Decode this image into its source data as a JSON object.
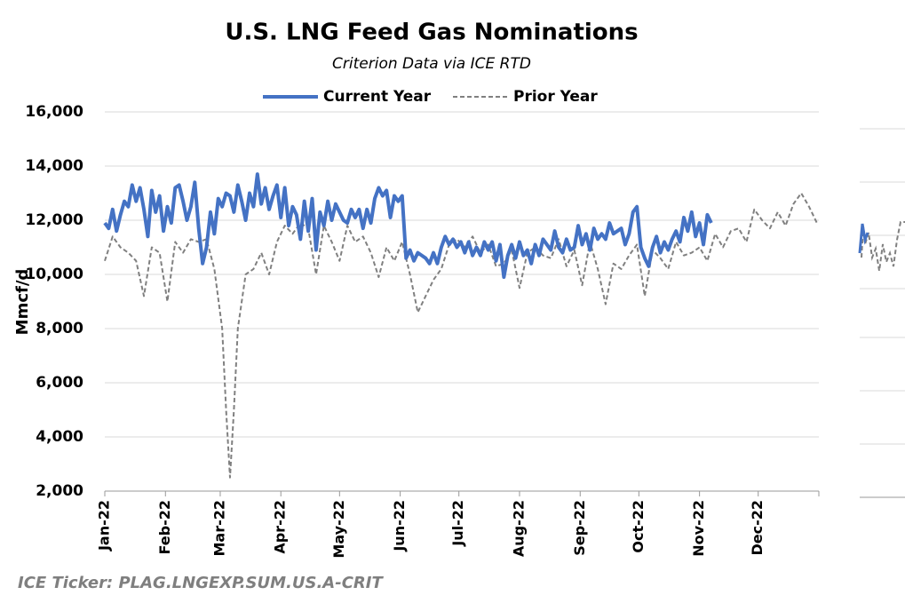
{
  "chart_data": {
    "type": "line",
    "title": "U.S. LNG Feed Gas Nominations",
    "subtitle": "Criterion Data via ICE RTD",
    "ylabel": "Mmcf/d",
    "footer": "ICE Ticker: PLAG.LNGEXP.SUM.US.A-CRIT",
    "legend": "top",
    "grid": true,
    "xlim": [
      0,
      365
    ],
    "xticks": [
      {
        "value": 0,
        "label": "Jan-22"
      },
      {
        "value": 31,
        "label": "Feb-22"
      },
      {
        "value": 59,
        "label": "Mar-22"
      },
      {
        "value": 90,
        "label": "Apr-22"
      },
      {
        "value": 120,
        "label": "May-22"
      },
      {
        "value": 151,
        "label": "Jun-22"
      },
      {
        "value": 181,
        "label": "Jul-22"
      },
      {
        "value": 212,
        "label": "Aug-22"
      },
      {
        "value": 243,
        "label": "Sep-22"
      },
      {
        "value": 273,
        "label": "Oct-22"
      },
      {
        "value": 304,
        "label": "Nov-22"
      },
      {
        "value": 334,
        "label": "Dec-22"
      }
    ],
    "ylim": [
      2000,
      16000
    ],
    "yticks": [
      {
        "value": 2000,
        "label": "2,000"
      },
      {
        "value": 4000,
        "label": "4,000"
      },
      {
        "value": 6000,
        "label": "6,000"
      },
      {
        "value": 8000,
        "label": "8,000"
      },
      {
        "value": 10000,
        "label": "10,000"
      },
      {
        "value": 12000,
        "label": "12,000"
      },
      {
        "value": 14000,
        "label": "14,000"
      },
      {
        "value": 16000,
        "label": "16,000"
      }
    ],
    "series": [
      {
        "name": "Current Year",
        "color": "#4472c4",
        "dash": false,
        "width": 4,
        "x": [
          0,
          2,
          4,
          6,
          8,
          10,
          12,
          14,
          16,
          18,
          20,
          22,
          24,
          26,
          28,
          30,
          32,
          34,
          36,
          38,
          40,
          42,
          44,
          46,
          48,
          50,
          52,
          54,
          56,
          58,
          60,
          62,
          64,
          66,
          68,
          70,
          72,
          74,
          76,
          78,
          80,
          82,
          84,
          86,
          88,
          90,
          92,
          94,
          96,
          98,
          100,
          102,
          104,
          106,
          108,
          110,
          112,
          114,
          116,
          118,
          120,
          122,
          124,
          126,
          128,
          130,
          132,
          134,
          136,
          138,
          140,
          142,
          144,
          146,
          148,
          150,
          152,
          154,
          156,
          158,
          160,
          162,
          164,
          166,
          168,
          170,
          172,
          174,
          176,
          178,
          180,
          182,
          184,
          186,
          188,
          190,
          192,
          194,
          196,
          198,
          200,
          202,
          204,
          206,
          208,
          210,
          212,
          214,
          216,
          218,
          220,
          222,
          224,
          226,
          228,
          230,
          232,
          234,
          236,
          238,
          240,
          242,
          244,
          246,
          248,
          250,
          252,
          254,
          256,
          258,
          260,
          262,
          264,
          266,
          268,
          270,
          272,
          274,
          276,
          278,
          280,
          282,
          284,
          286,
          288,
          290,
          292,
          294,
          296,
          298,
          300,
          302,
          304,
          306,
          308,
          310
        ],
        "values": [
          11900,
          11700,
          12400,
          11600,
          12200,
          12700,
          12500,
          13300,
          12700,
          13200,
          12400,
          11400,
          13100,
          12300,
          12900,
          11600,
          12500,
          11900,
          13200,
          13300,
          12700,
          12000,
          12500,
          13400,
          11700,
          10400,
          11000,
          12300,
          11500,
          12800,
          12500,
          13000,
          12900,
          12300,
          13300,
          12700,
          12000,
          13000,
          12500,
          13700,
          12600,
          13200,
          12400,
          12900,
          13300,
          12100,
          13200,
          11800,
          12500,
          12200,
          11300,
          12700,
          11600,
          12800,
          10900,
          12300,
          11800,
          12700,
          12000,
          12600,
          12300,
          12000,
          11900,
          12400,
          12100,
          12400,
          11700,
          12400,
          11900,
          12800,
          13200,
          12900,
          13100,
          12100,
          12900,
          12700,
          12900,
          10600,
          10900,
          10500,
          10800,
          10700,
          10600,
          10400,
          10800,
          10400,
          11000,
          11400,
          11100,
          11300,
          11000,
          11200,
          10800,
          11200,
          10700,
          11000,
          10700,
          11200,
          10900,
          11200,
          10500,
          11100,
          9900,
          10700,
          11100,
          10600,
          11200,
          10700,
          10900,
          10400,
          11100,
          10700,
          11300,
          11100,
          10900,
          11600,
          11000,
          10800,
          11300,
          10900,
          11000,
          11800,
          11100,
          11500,
          10900,
          11700,
          11300,
          11500,
          11300,
          11900,
          11500,
          11600,
          11700,
          11100,
          11500,
          12300,
          12500,
          11000,
          10600,
          10300,
          11000,
          11400,
          10800,
          11200,
          10900,
          11300,
          11600,
          11200,
          12100,
          11600,
          12300,
          11400,
          11900,
          11100,
          12200,
          11900
        ]
      },
      {
        "name": "Prior Year",
        "color": "#808080",
        "dash": true,
        "width": 2,
        "x": [
          0,
          4,
          8,
          12,
          16,
          20,
          24,
          28,
          32,
          36,
          40,
          44,
          48,
          52,
          56,
          60,
          62,
          64,
          66,
          68,
          72,
          76,
          80,
          84,
          88,
          92,
          96,
          100,
          104,
          108,
          112,
          116,
          120,
          124,
          128,
          132,
          136,
          140,
          144,
          148,
          152,
          156,
          160,
          164,
          168,
          172,
          176,
          180,
          184,
          188,
          192,
          196,
          200,
          204,
          208,
          212,
          216,
          220,
          224,
          228,
          232,
          236,
          240,
          244,
          248,
          252,
          256,
          260,
          264,
          268,
          272,
          276,
          280,
          284,
          288,
          292,
          296,
          300,
          304,
          308,
          312,
          316,
          320,
          324,
          328,
          332,
          336,
          340,
          344,
          348,
          352,
          356,
          360,
          364
        ],
        "values": [
          10500,
          11400,
          11000,
          10800,
          10500,
          9200,
          11000,
          10800,
          9000,
          11200,
          10800,
          11300,
          11200,
          11300,
          10200,
          8000,
          5000,
          2500,
          5000,
          8000,
          10000,
          10200,
          10800,
          10000,
          11200,
          11800,
          11500,
          11900,
          11700,
          10000,
          11800,
          11200,
          10500,
          11800,
          11200,
          11400,
          10800,
          9900,
          11000,
          10500,
          11200,
          10000,
          8600,
          9200,
          9800,
          10200,
          11100,
          11300,
          11000,
          11400,
          10800,
          11100,
          10300,
          10400,
          10900,
          9500,
          10800,
          11000,
          10700,
          10600,
          11300,
          10300,
          10900,
          9600,
          11200,
          10200,
          8900,
          10400,
          10200,
          10700,
          11100,
          9200,
          10900,
          10600,
          10200,
          11200,
          10700,
          10800,
          11000,
          10500,
          11500,
          11000,
          11600,
          11700,
          11200,
          12400,
          12000,
          11700,
          12300,
          11800,
          12600,
          13000,
          12500,
          11900
        ]
      }
    ]
  }
}
